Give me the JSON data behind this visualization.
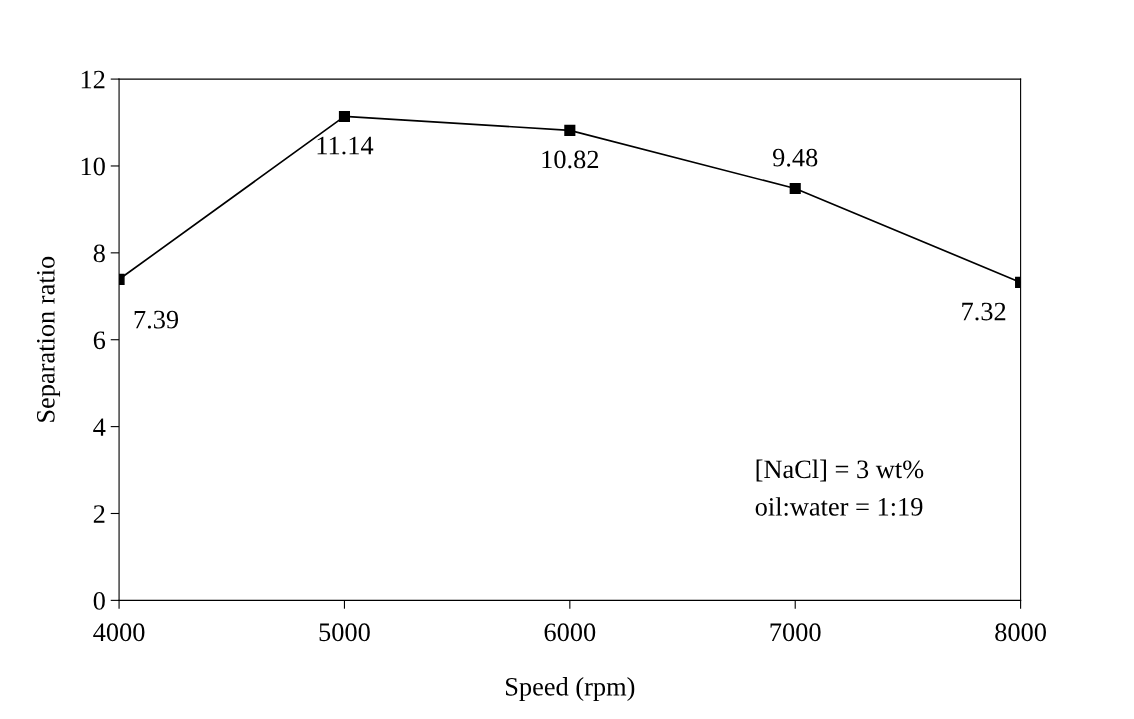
{
  "chart_data": {
    "type": "line",
    "xlabel": "Speed (rpm)",
    "ylabel": "Separation ratio",
    "x": [
      4000,
      5000,
      6000,
      7000,
      8000
    ],
    "series": [
      {
        "color": "#000000",
        "values": [
          7.39,
          11.14,
          10.82,
          9.48,
          7.32
        ]
      }
    ],
    "xlim": [
      4000,
      8000
    ],
    "xticks": [
      4000,
      5000,
      6000,
      7000,
      8000
    ],
    "ylim": [
      0,
      12
    ],
    "yticks": [
      0,
      2,
      4,
      6,
      8,
      10,
      12
    ],
    "data_labels": true,
    "marker": "square",
    "line_style": "solid",
    "grid": false,
    "legend": false,
    "annotations": [
      "[NaCl] = 3 wt%",
      "oil:water = 1:19"
    ]
  }
}
